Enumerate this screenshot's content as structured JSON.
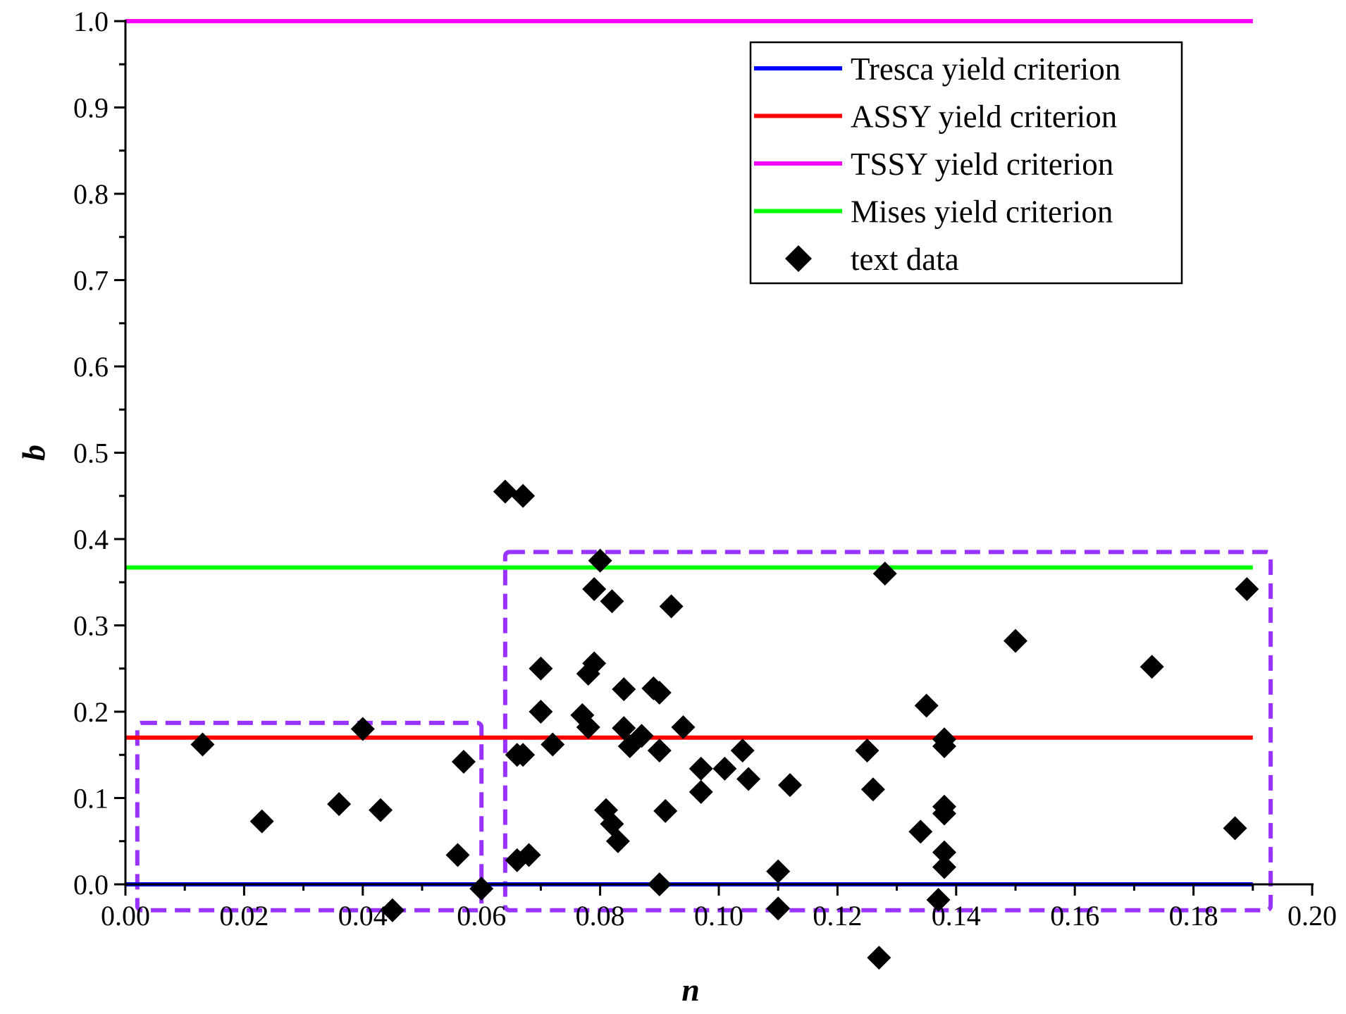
{
  "chart_data": {
    "type": "scatter",
    "xlabel": "n",
    "ylabel": "b",
    "xlim": [
      0.0,
      0.2
    ],
    "ylim": [
      0.0,
      1.0
    ],
    "x_ticks": [
      "0.00",
      "0.02",
      "0.04",
      "0.06",
      "0.08",
      "0.10",
      "0.12",
      "0.14",
      "0.16",
      "0.18",
      "0.20"
    ],
    "y_ticks": [
      "0.0",
      "0.1",
      "0.2",
      "0.3",
      "0.4",
      "0.5",
      "0.6",
      "0.7",
      "0.8",
      "0.9",
      "1.0"
    ],
    "legend_position": "top-right",
    "lines": [
      {
        "name": "Tresca yield criterion",
        "y": 0.0,
        "x_range": [
          0.0,
          0.19
        ],
        "color": "#0000ff"
      },
      {
        "name": "ASSY yield criterion",
        "y": 0.17,
        "x_range": [
          0.0,
          0.19
        ],
        "color": "#ff0000"
      },
      {
        "name": "TSSY yield criterion",
        "y": 1.0,
        "x_range": [
          0.0,
          0.19
        ],
        "color": "#ff00ff"
      },
      {
        "name": "Mises yield criterion",
        "y": 0.367,
        "x_range": [
          0.0,
          0.19
        ],
        "color": "#00ff00"
      }
    ],
    "scatter_series": {
      "name": "text data",
      "color": "#000000",
      "points": [
        [
          0.013,
          0.162
        ],
        [
          0.023,
          0.073
        ],
        [
          0.036,
          0.093
        ],
        [
          0.04,
          0.18
        ],
        [
          0.043,
          0.086
        ],
        [
          0.045,
          -0.03
        ],
        [
          0.056,
          0.034
        ],
        [
          0.057,
          0.142
        ],
        [
          0.06,
          -0.005
        ],
        [
          0.064,
          0.455
        ],
        [
          0.067,
          0.45
        ],
        [
          0.066,
          0.15
        ],
        [
          0.067,
          0.15
        ],
        [
          0.066,
          0.028
        ],
        [
          0.068,
          0.034
        ],
        [
          0.07,
          0.2
        ],
        [
          0.07,
          0.25
        ],
        [
          0.072,
          0.162
        ],
        [
          0.077,
          0.196
        ],
        [
          0.078,
          0.244
        ],
        [
          0.079,
          0.256
        ],
        [
          0.078,
          0.182
        ],
        [
          0.079,
          0.342
        ],
        [
          0.08,
          0.375
        ],
        [
          0.082,
          0.328
        ],
        [
          0.081,
          0.086
        ],
        [
          0.082,
          0.07
        ],
        [
          0.083,
          0.05
        ],
        [
          0.084,
          0.226
        ],
        [
          0.084,
          0.181
        ],
        [
          0.085,
          0.16
        ],
        [
          0.087,
          0.172
        ],
        [
          0.089,
          0.227
        ],
        [
          0.09,
          0.222
        ],
        [
          0.09,
          0.155
        ],
        [
          0.091,
          0.085
        ],
        [
          0.09,
          0.0
        ],
        [
          0.092,
          0.322
        ],
        [
          0.094,
          0.182
        ],
        [
          0.097,
          0.134
        ],
        [
          0.097,
          0.107
        ],
        [
          0.101,
          0.134
        ],
        [
          0.104,
          0.155
        ],
        [
          0.105,
          0.122
        ],
        [
          0.11,
          0.015
        ],
        [
          0.11,
          -0.028
        ],
        [
          0.112,
          0.115
        ],
        [
          0.125,
          0.155
        ],
        [
          0.126,
          0.11
        ],
        [
          0.127,
          -0.085
        ],
        [
          0.128,
          0.36
        ],
        [
          0.134,
          0.061
        ],
        [
          0.135,
          0.207
        ],
        [
          0.138,
          0.168
        ],
        [
          0.138,
          0.16
        ],
        [
          0.138,
          0.09
        ],
        [
          0.138,
          0.082
        ],
        [
          0.138,
          0.037
        ],
        [
          0.138,
          0.02
        ],
        [
          0.137,
          -0.018
        ],
        [
          0.15,
          0.282
        ],
        [
          0.173,
          0.252
        ],
        [
          0.187,
          0.065
        ],
        [
          0.189,
          0.342
        ]
      ]
    },
    "regions": [
      {
        "x_range": [
          0.002,
          0.06
        ],
        "y_range": [
          -0.03,
          0.187
        ],
        "color": "#9933ff"
      },
      {
        "x_range": [
          0.064,
          0.193
        ],
        "y_range": [
          -0.03,
          0.385
        ],
        "color": "#9933ff"
      }
    ]
  }
}
